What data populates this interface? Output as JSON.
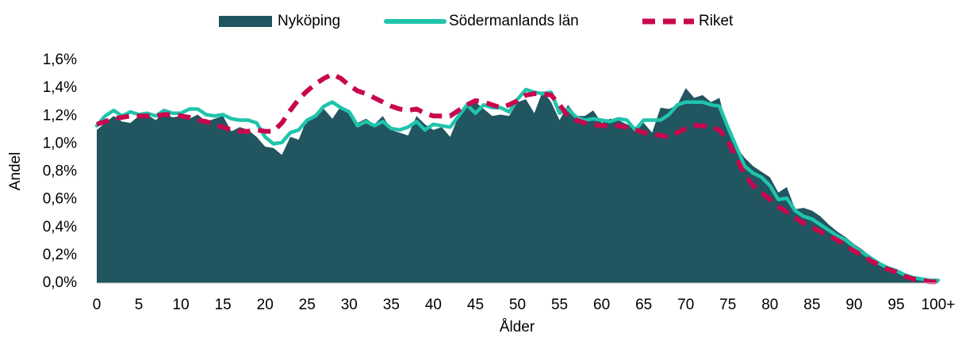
{
  "chart_data": {
    "type": "area",
    "xlabel": "Ålder",
    "ylabel": "Andel",
    "categories": [
      "0",
      null,
      null,
      null,
      null,
      "5",
      null,
      null,
      null,
      null,
      "10",
      null,
      null,
      null,
      null,
      "15",
      null,
      null,
      null,
      null,
      "20",
      null,
      null,
      null,
      null,
      "25",
      null,
      null,
      null,
      null,
      "30",
      null,
      null,
      null,
      null,
      "35",
      null,
      null,
      null,
      null,
      "40",
      null,
      null,
      null,
      null,
      "45",
      null,
      null,
      null,
      null,
      "50",
      null,
      null,
      null,
      null,
      "55",
      null,
      null,
      null,
      null,
      "60",
      null,
      null,
      null,
      null,
      "65",
      null,
      null,
      null,
      null,
      "70",
      null,
      null,
      null,
      null,
      "75",
      null,
      null,
      null,
      null,
      "80",
      null,
      null,
      null,
      null,
      "85",
      null,
      null,
      null,
      null,
      "90",
      null,
      null,
      null,
      null,
      "95",
      null,
      null,
      null,
      null,
      "100+"
    ],
    "ylim": [
      0,
      1.6
    ],
    "yticks": [
      {
        "value": 0,
        "label": "0,0%"
      },
      {
        "value": 0.2,
        "label": "0,2%"
      },
      {
        "value": 0.4,
        "label": "0,4%"
      },
      {
        "value": 0.6,
        "label": "0,6%"
      },
      {
        "value": 0.8,
        "label": "0,8%"
      },
      {
        "value": 1.0,
        "label": "1,0%"
      },
      {
        "value": 1.2,
        "label": "1,2%"
      },
      {
        "value": 1.4,
        "label": "1,4%"
      },
      {
        "value": 1.6,
        "label": "1,6%"
      }
    ],
    "legend": "top",
    "series": [
      {
        "name": "Nyköping",
        "type": "area",
        "color": "#215560",
        "values": [
          1.1,
          1.15,
          1.2,
          1.16,
          1.15,
          1.2,
          1.21,
          1.17,
          1.22,
          1.19,
          1.2,
          1.18,
          1.21,
          1.16,
          1.18,
          1.2,
          1.09,
          1.12,
          1.1,
          1.05,
          0.98,
          0.97,
          0.92,
          1.05,
          1.03,
          1.18,
          1.2,
          1.25,
          1.18,
          1.27,
          1.22,
          1.15,
          1.18,
          1.14,
          1.2,
          1.1,
          1.08,
          1.06,
          1.2,
          1.14,
          1.1,
          1.12,
          1.05,
          1.2,
          1.26,
          1.3,
          1.25,
          1.2,
          1.21,
          1.2,
          1.3,
          1.32,
          1.22,
          1.38,
          1.3,
          1.17,
          1.28,
          1.2,
          1.2,
          1.24,
          1.15,
          1.18,
          1.17,
          1.14,
          1.12,
          1.15,
          1.08,
          1.26,
          1.25,
          1.28,
          1.4,
          1.33,
          1.35,
          1.3,
          1.33,
          1.1,
          0.98,
          0.9,
          0.84,
          0.8,
          0.76,
          0.65,
          0.69,
          0.53,
          0.54,
          0.52,
          0.48,
          0.42,
          0.37,
          0.33,
          0.28,
          0.24,
          0.19,
          0.15,
          0.12,
          0.1,
          0.07,
          0.05,
          0.04,
          0.03,
          0.02
        ]
      },
      {
        "name": "Södermanlands län",
        "type": "line",
        "color": "#1fc4aa",
        "values": [
          1.13,
          1.2,
          1.24,
          1.2,
          1.23,
          1.21,
          1.22,
          1.2,
          1.24,
          1.22,
          1.22,
          1.25,
          1.25,
          1.21,
          1.2,
          1.21,
          1.18,
          1.17,
          1.17,
          1.15,
          1.05,
          1.0,
          1.01,
          1.08,
          1.1,
          1.17,
          1.2,
          1.27,
          1.3,
          1.26,
          1.23,
          1.13,
          1.16,
          1.13,
          1.16,
          1.11,
          1.1,
          1.12,
          1.16,
          1.1,
          1.14,
          1.13,
          1.12,
          1.2,
          1.28,
          1.22,
          1.28,
          1.26,
          1.26,
          1.23,
          1.32,
          1.39,
          1.37,
          1.36,
          1.37,
          1.22,
          1.25,
          1.19,
          1.17,
          1.18,
          1.17,
          1.16,
          1.18,
          1.17,
          1.1,
          1.17,
          1.17,
          1.17,
          1.21,
          1.28,
          1.3,
          1.3,
          1.3,
          1.28,
          1.27,
          1.12,
          0.98,
          0.84,
          0.79,
          0.76,
          0.7,
          0.6,
          0.61,
          0.52,
          0.48,
          0.46,
          0.42,
          0.38,
          0.34,
          0.31,
          0.26,
          0.22,
          0.18,
          0.14,
          0.11,
          0.09,
          0.06,
          0.04,
          0.03,
          0.02,
          0.02
        ]
      },
      {
        "name": "Riket",
        "type": "line",
        "dashed": true,
        "color": "#c8084e",
        "values": [
          1.14,
          1.16,
          1.18,
          1.19,
          1.2,
          1.2,
          1.2,
          1.2,
          1.21,
          1.21,
          1.2,
          1.19,
          1.17,
          1.16,
          1.14,
          1.12,
          1.1,
          1.09,
          1.09,
          1.1,
          1.09,
          1.09,
          1.15,
          1.24,
          1.32,
          1.38,
          1.43,
          1.47,
          1.5,
          1.47,
          1.42,
          1.38,
          1.36,
          1.33,
          1.3,
          1.27,
          1.25,
          1.24,
          1.25,
          1.22,
          1.2,
          1.2,
          1.2,
          1.24,
          1.28,
          1.31,
          1.3,
          1.28,
          1.26,
          1.28,
          1.31,
          1.35,
          1.36,
          1.36,
          1.35,
          1.28,
          1.2,
          1.17,
          1.15,
          1.14,
          1.13,
          1.13,
          1.13,
          1.12,
          1.1,
          1.08,
          1.07,
          1.06,
          1.05,
          1.08,
          1.11,
          1.13,
          1.13,
          1.12,
          1.1,
          1.02,
          0.9,
          0.78,
          0.7,
          0.65,
          0.6,
          0.55,
          0.51,
          0.47,
          0.43,
          0.4,
          0.37,
          0.34,
          0.31,
          0.27,
          0.23,
          0.2,
          0.16,
          0.13,
          0.1,
          0.08,
          0.05,
          0.03,
          0.02,
          0.01,
          0.01
        ]
      }
    ]
  }
}
